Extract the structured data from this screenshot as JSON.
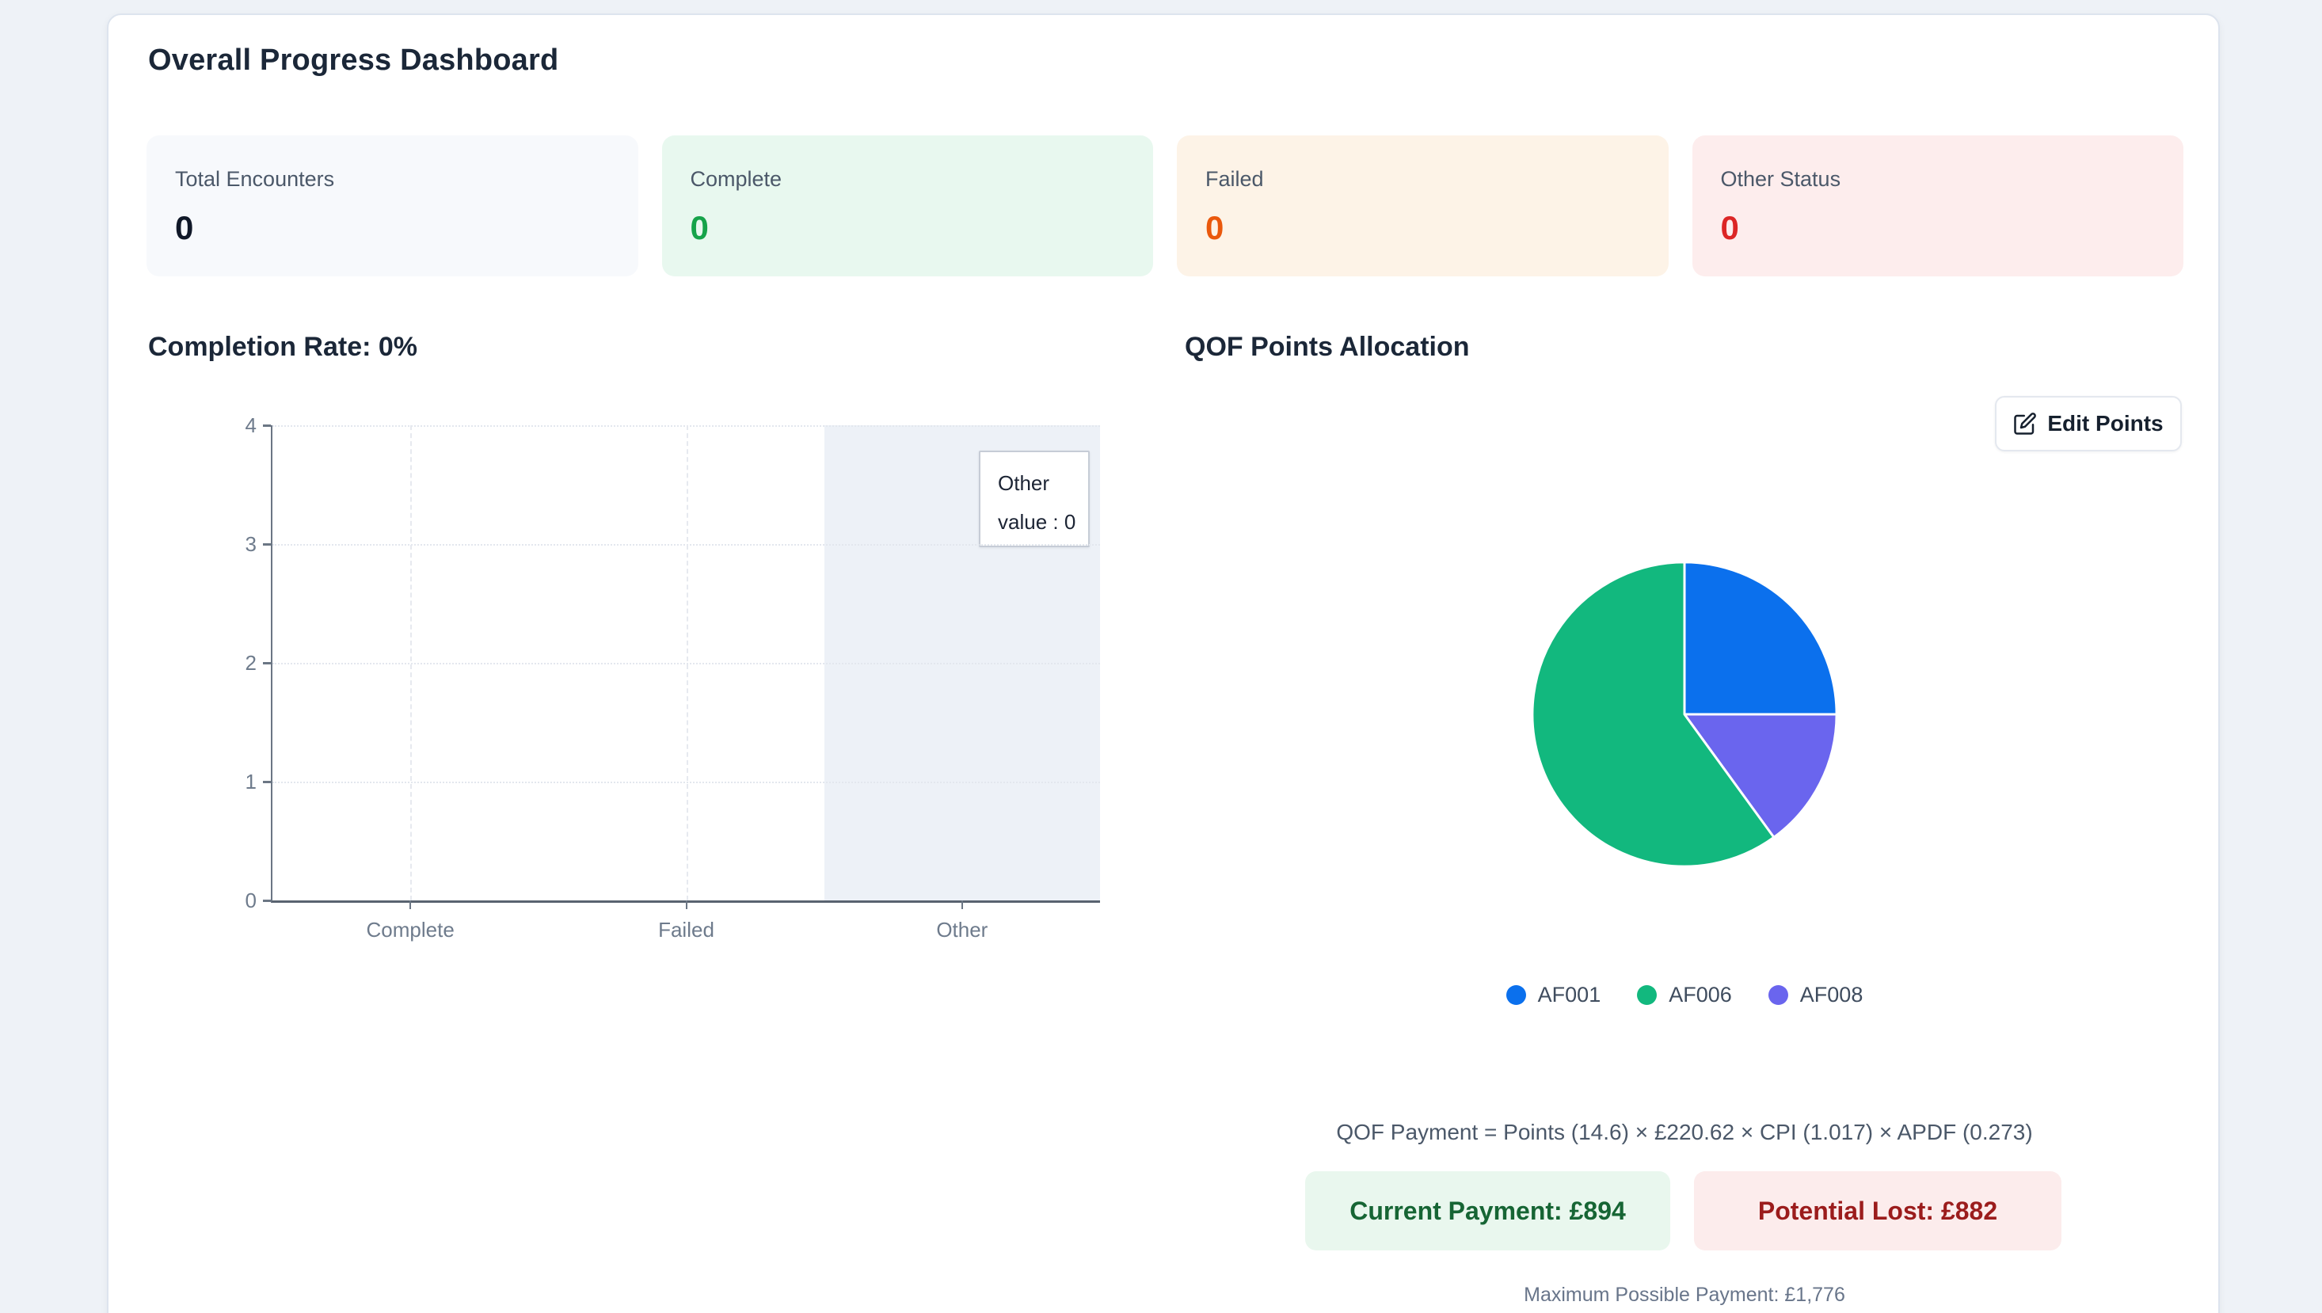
{
  "page": {
    "title": "Overall Progress Dashboard"
  },
  "stats": [
    {
      "label": "Total Encounters",
      "value": "0",
      "variant": "neutral"
    },
    {
      "label": "Complete",
      "value": "0",
      "variant": "green"
    },
    {
      "label": "Failed",
      "value": "0",
      "variant": "orange"
    },
    {
      "label": "Other Status",
      "value": "0",
      "variant": "red"
    }
  ],
  "completion": {
    "heading": "Completion Rate: 0%"
  },
  "qof": {
    "heading": "QOF Points Allocation",
    "edit_button_label": "Edit Points",
    "formula": "QOF Payment = Points (14.6) × £220.62 × CPI (1.017) × APDF (0.273)",
    "current_payment": "Current Payment: £894",
    "potential_lost": "Potential Lost: £882",
    "max_payment": "Maximum Possible Payment: £1,776"
  },
  "colors": {
    "accent_blue": "#0b70ed",
    "accent_green": "#12b87e",
    "accent_purple": "#6a65ee",
    "status_green": "#16a34a",
    "status_orange": "#ea580c",
    "status_red": "#dc2626"
  },
  "chart_data": [
    {
      "type": "bar",
      "title": "Completion Rate: 0%",
      "categories": [
        "Complete",
        "Failed",
        "Other"
      ],
      "values": [
        0,
        0,
        0
      ],
      "xlabel": "",
      "ylabel": "",
      "ylim": [
        0,
        4
      ],
      "y_ticks": [
        0,
        1,
        2,
        3,
        4
      ],
      "grid": "on",
      "highlight_category": "Other",
      "tooltip": {
        "title": "Other",
        "line": "value : 0"
      }
    },
    {
      "type": "pie",
      "title": "QOF Points Allocation",
      "slices": [
        {
          "label": "AF001",
          "value": 25,
          "color": "#0b70ed"
        },
        {
          "label": "AF008",
          "value": 15,
          "color": "#6a65ee"
        },
        {
          "label": "AF006",
          "value": 60,
          "color": "#12b87e"
        }
      ],
      "legend_order": [
        0,
        2,
        1
      ],
      "legend_position": "bottom"
    }
  ]
}
